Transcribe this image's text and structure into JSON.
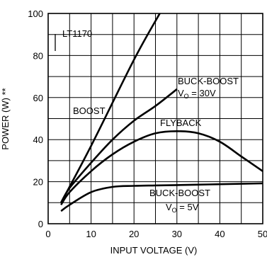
{
  "chart_data": {
    "type": "line",
    "title": "",
    "xlabel": "INPUT VOLTAGE (V)",
    "ylabel": "POWER (W) **",
    "xlim": [
      0,
      50
    ],
    "ylim": [
      0,
      100
    ],
    "x_ticks": [
      0,
      10,
      20,
      30,
      40,
      50
    ],
    "y_ticks": [
      0,
      20,
      40,
      60,
      80,
      100
    ],
    "grid": true,
    "legend": "none",
    "series": [
      {
        "name": "BOOST",
        "x": [
          3,
          10,
          20,
          26
        ],
        "y": [
          10,
          37,
          78,
          100
        ]
      },
      {
        "name": "BUCK-BOOST VO = 30V",
        "x": [
          3,
          5,
          10,
          15,
          20,
          25,
          30
        ],
        "y": [
          10,
          17,
          29,
          40,
          49,
          56,
          64
        ]
      },
      {
        "name": "FLYBACK",
        "x": [
          3,
          5,
          10,
          15,
          20,
          25,
          30,
          35,
          40,
          45,
          50
        ],
        "y": [
          9,
          15,
          25,
          33,
          39,
          43,
          44,
          43,
          39,
          32,
          25
        ]
      },
      {
        "name": "BUCK-BOOST VO = 5V",
        "x": [
          3,
          5,
          10,
          15,
          20,
          25,
          30,
          35,
          40,
          45,
          50
        ],
        "y": [
          6,
          9,
          15,
          17.5,
          18,
          18.2,
          18.4,
          18.6,
          18.8,
          19,
          19.2
        ]
      }
    ],
    "annotations": {
      "lt1170": "LT1170",
      "boost": "BOOST",
      "bb30_line1": "BUCK-BOOST",
      "bb30_v": "V",
      "bb30_sub": "O",
      "bb30_value": " = 30V",
      "flyback": "FLYBACK",
      "bb5_line1": "BUCK-BOOST",
      "bb5_v": "V",
      "bb5_sub": "O",
      "bb5_value": " = 5V"
    }
  }
}
